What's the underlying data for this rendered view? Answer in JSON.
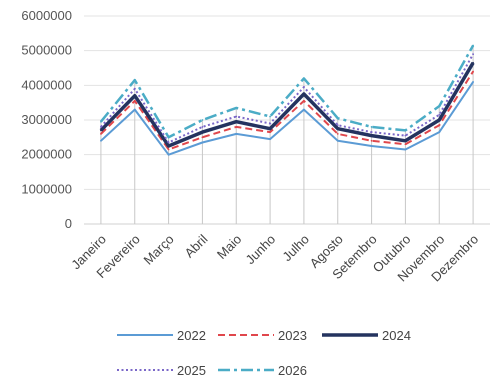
{
  "chart_data": {
    "type": "line",
    "categories": [
      "Janeiro",
      "Fevereiro",
      "Março",
      "Abril",
      "Maio",
      "Junho",
      "Julho",
      "Agosto",
      "Setembro",
      "Outubro",
      "Novembro",
      "Dezembro"
    ],
    "ylim": [
      0,
      6000000
    ],
    "yticks": [
      "0",
      "1000000",
      "2000000",
      "3000000",
      "4000000",
      "5000000",
      "6000000"
    ],
    "grid": true,
    "legend_position": "bottom",
    "series": [
      {
        "name": "2022",
        "color": "#5b9bd5",
        "dash": "solid",
        "values": [
          2400000,
          3300000,
          2000000,
          2350000,
          2600000,
          2450000,
          3300000,
          2400000,
          2250000,
          2150000,
          2650000,
          4100000
        ]
      },
      {
        "name": "2023",
        "color": "#e0474c",
        "dash": "dashed",
        "values": [
          2600000,
          3550000,
          2150000,
          2500000,
          2800000,
          2650000,
          3550000,
          2600000,
          2400000,
          2300000,
          2850000,
          4400000
        ]
      },
      {
        "name": "2024",
        "color": "#24335f",
        "dash": "solid-thick",
        "values": [
          2700000,
          3700000,
          2250000,
          2650000,
          2950000,
          2750000,
          3750000,
          2750000,
          2550000,
          2400000,
          3000000,
          4650000
        ]
      },
      {
        "name": "2025",
        "color": "#7b68c8",
        "dash": "dotted",
        "values": [
          2800000,
          3900000,
          2350000,
          2800000,
          3100000,
          2900000,
          3950000,
          2850000,
          2650000,
          2550000,
          3150000,
          4900000
        ]
      },
      {
        "name": "2026",
        "color": "#4bacc6",
        "dash": "dashdot",
        "values": [
          2950000,
          4150000,
          2500000,
          3000000,
          3350000,
          3100000,
          4200000,
          3050000,
          2800000,
          2700000,
          3400000,
          5150000
        ]
      }
    ]
  }
}
